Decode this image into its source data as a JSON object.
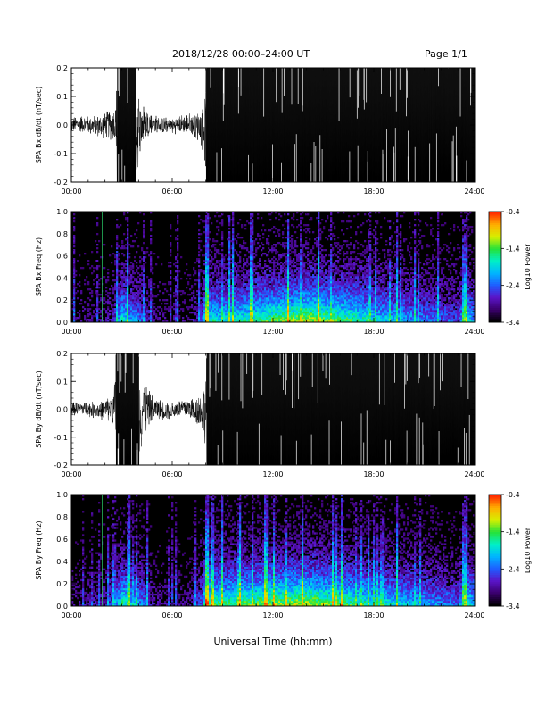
{
  "header": {
    "title": "2018/12/28  00:00–24:00 UT",
    "page": "Page 1/1"
  },
  "xlabel": "Universal Time (hh:mm)",
  "colors": {
    "trace": "#000000",
    "background_spectrogram": "#000000",
    "marker_line": "#2ee070",
    "colormap": [
      "#000000",
      "#3a006b",
      "#5a14c8",
      "#1f5cff",
      "#00b5ff",
      "#00f0c8",
      "#25e23a",
      "#d6f000",
      "#ffb000",
      "#ff2a00"
    ]
  },
  "chart_data": [
    {
      "type": "line",
      "id": "bx-dbdt",
      "ylabel": "SPA Bx dB/dt (nT/sec)",
      "xlim": [
        0,
        24
      ],
      "ylim": [
        -0.2,
        0.2
      ],
      "yticks": [
        "0.2",
        "0.1",
        "0.0",
        "-0.1",
        "-0.2"
      ],
      "ytick_values": [
        0.2,
        0.1,
        0.0,
        -0.1,
        -0.2
      ],
      "xticks": [
        "00:00",
        "06:00",
        "12:00",
        "18:00",
        "24:00"
      ],
      "xtick_values": [
        0,
        6,
        12,
        18,
        24
      ],
      "amplitude_profile": {
        "hours": [
          0,
          1,
          2,
          2.6,
          2.75,
          3.2,
          3.8,
          4.1,
          4.5,
          5,
          6,
          7,
          7.6,
          7.85,
          8.1,
          9,
          12,
          15,
          18,
          21,
          22.5,
          23.2,
          23.5,
          24
        ],
        "half_amplitude": [
          0.03,
          0.035,
          0.05,
          0.07,
          0.22,
          0.25,
          0.2,
          0.12,
          0.06,
          0.035,
          0.03,
          0.04,
          0.06,
          0.1,
          0.22,
          0.25,
          0.25,
          0.25,
          0.24,
          0.22,
          0.2,
          0.22,
          0.25,
          0.25
        ]
      }
    },
    {
      "type": "heatmap",
      "id": "bx-spectrogram",
      "ylabel": "SPA Bx Freq (Hz)",
      "xlim": [
        0,
        24
      ],
      "ylim": [
        0,
        1.0
      ],
      "yticks": [
        "1.0",
        "0.8",
        "0.6",
        "0.4",
        "0.2",
        "0.0"
      ],
      "ytick_values": [
        1.0,
        0.8,
        0.6,
        0.4,
        0.2,
        0.0
      ],
      "xticks": [
        "00:00",
        "06:00",
        "12:00",
        "18:00",
        "24:00"
      ],
      "xtick_values": [
        0,
        6,
        12,
        18,
        24
      ],
      "marker_hour": 1.85,
      "colorbar": {
        "label": "Log10 Power",
        "range": [
          -3.4,
          -0.4
        ],
        "ticks": [
          "-0.4",
          "-1.4",
          "-2.4",
          "-3.4"
        ],
        "tick_values": [
          -0.4,
          -1.4,
          -2.4,
          -3.4
        ]
      },
      "activity_profile": {
        "hours": [
          0,
          1,
          2,
          2.6,
          3,
          3.5,
          4,
          4.5,
          5,
          6,
          7,
          7.8,
          8,
          8.3,
          9,
          10,
          11,
          12,
          13,
          14,
          15,
          16,
          17,
          18,
          19,
          20,
          21,
          22,
          23,
          23.5,
          24
        ],
        "level": [
          0.1,
          0.12,
          0.15,
          0.3,
          0.6,
          0.45,
          0.4,
          0.25,
          0.12,
          0.1,
          0.1,
          0.3,
          0.7,
          0.6,
          0.55,
          0.6,
          0.65,
          0.7,
          0.75,
          0.8,
          0.75,
          0.7,
          0.65,
          0.55,
          0.5,
          0.45,
          0.4,
          0.35,
          0.3,
          0.6,
          0.4
        ]
      }
    },
    {
      "type": "line",
      "id": "by-dbdt",
      "ylabel": "SPA By dB/dt (nT/sec)",
      "xlim": [
        0,
        24
      ],
      "ylim": [
        -0.2,
        0.2
      ],
      "yticks": [
        "0.2",
        "0.1",
        "0.0",
        "-0.1",
        "-0.2"
      ],
      "ytick_values": [
        0.2,
        0.1,
        0.0,
        -0.1,
        -0.2
      ],
      "xticks": [
        "00:00",
        "06:00",
        "12:00",
        "18:00",
        "24:00"
      ],
      "xtick_values": [
        0,
        6,
        12,
        18,
        24
      ],
      "amplitude_profile": {
        "hours": [
          0,
          1,
          2,
          2.5,
          2.7,
          3.2,
          3.8,
          4.2,
          4.6,
          5,
          6,
          7,
          7.5,
          7.9,
          8.1,
          9,
          12,
          15,
          18,
          21,
          22.5,
          23.2,
          23.5,
          24
        ],
        "half_amplitude": [
          0.025,
          0.03,
          0.04,
          0.06,
          0.22,
          0.25,
          0.22,
          0.15,
          0.07,
          0.04,
          0.035,
          0.04,
          0.06,
          0.1,
          0.22,
          0.25,
          0.25,
          0.25,
          0.24,
          0.22,
          0.2,
          0.22,
          0.25,
          0.25
        ]
      }
    },
    {
      "type": "heatmap",
      "id": "by-spectrogram",
      "ylabel": "SPA By Freq (Hz)",
      "xlim": [
        0,
        24
      ],
      "ylim": [
        0,
        1.0
      ],
      "yticks": [
        "1.0",
        "0.8",
        "0.6",
        "0.4",
        "0.2",
        "0.0"
      ],
      "ytick_values": [
        1.0,
        0.8,
        0.6,
        0.4,
        0.2,
        0.0
      ],
      "xticks": [
        "00:00",
        "06:00",
        "12:00",
        "18:00",
        "24:00"
      ],
      "xtick_values": [
        0,
        6,
        12,
        18,
        24
      ],
      "marker_hour": 1.85,
      "colorbar": {
        "label": "Log10 Power",
        "range": [
          -3.4,
          -0.4
        ],
        "ticks": [
          "-0.4",
          "-1.4",
          "-2.4",
          "-3.4"
        ],
        "tick_values": [
          -0.4,
          -1.4,
          -2.4,
          -3.4
        ]
      },
      "activity_profile": {
        "hours": [
          0,
          1,
          2,
          2.6,
          3,
          3.5,
          4,
          4.5,
          5,
          6,
          7,
          7.8,
          8,
          8.3,
          9,
          10,
          11,
          12,
          13,
          14,
          15,
          16,
          17,
          18,
          19,
          20,
          21,
          22,
          23,
          23.5,
          24
        ],
        "level": [
          0.12,
          0.15,
          0.2,
          0.35,
          0.65,
          0.5,
          0.45,
          0.3,
          0.15,
          0.12,
          0.12,
          0.35,
          0.75,
          0.7,
          0.65,
          0.7,
          0.72,
          0.75,
          0.78,
          0.8,
          0.75,
          0.7,
          0.65,
          0.6,
          0.55,
          0.5,
          0.45,
          0.4,
          0.35,
          0.65,
          0.45
        ]
      }
    }
  ]
}
